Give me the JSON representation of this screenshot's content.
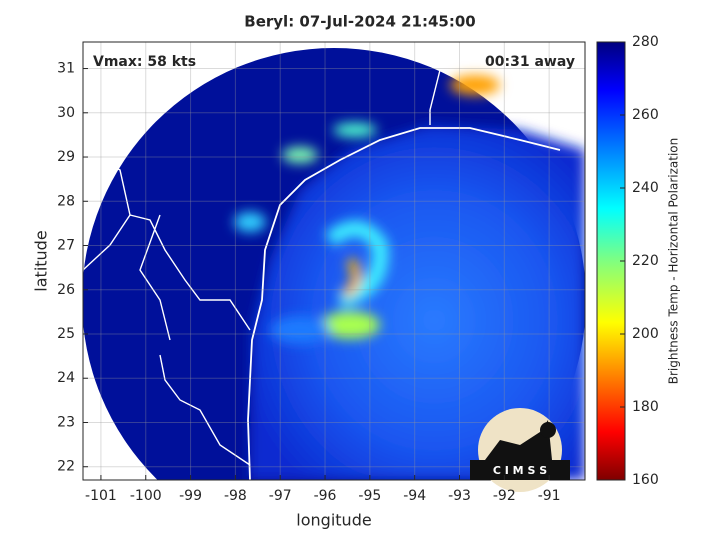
{
  "chart_data": {
    "type": "map",
    "title": "Beryl: 07-Jul-2024 21:45:00",
    "annotations": {
      "vmax": "Vmax: 58 kts",
      "away": "00:31 away"
    },
    "xlabel": "longitude",
    "ylabel": "latitude",
    "xlim": [
      -101.4,
      -90.2
    ],
    "ylim": [
      21.7,
      31.6
    ],
    "xticks": [
      -101,
      -100,
      -99,
      -98,
      -97,
      -96,
      -95,
      -94,
      -93,
      -92,
      -91
    ],
    "yticks": [
      22,
      23,
      24,
      25,
      26,
      27,
      28,
      29,
      30,
      31
    ],
    "grid": true,
    "colorbar": {
      "label": "Brightness Temp - Horizontal Polarization",
      "clim": [
        160,
        280
      ],
      "ticks": [
        160,
        180,
        200,
        220,
        240,
        260,
        280
      ]
    },
    "logo": "C I M S S"
  }
}
